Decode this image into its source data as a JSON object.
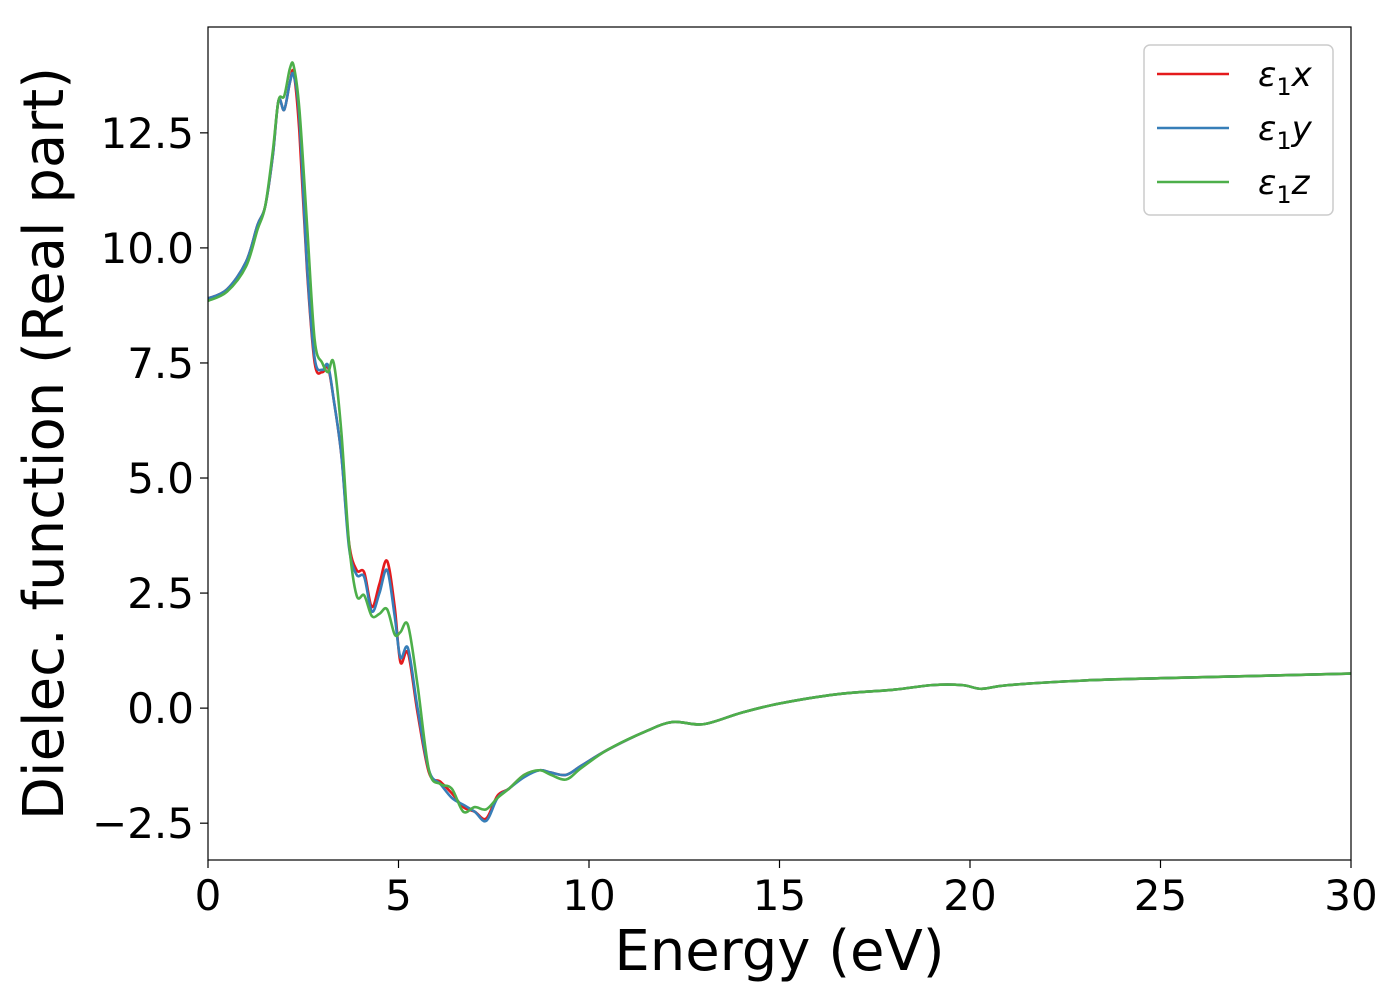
{
  "chart_data": {
    "type": "line",
    "xlabel": "Energy (eV)",
    "ylabel": "Dielec. function (Real part)",
    "xlim": [
      0,
      30
    ],
    "ylim": [
      -3.3,
      14.8
    ],
    "xticks": [
      0,
      5,
      10,
      15,
      20,
      25,
      30
    ],
    "xtick_labels": [
      "0",
      "5",
      "10",
      "15",
      "20",
      "25",
      "30"
    ],
    "yticks": [
      -2.5,
      0.0,
      2.5,
      5.0,
      7.5,
      10.0,
      12.5
    ],
    "ytick_labels": [
      "−2.5",
      "0.0",
      "2.5",
      "5.0",
      "7.5",
      "10.0",
      "12.5"
    ],
    "grid": false,
    "legend_position": "top-right",
    "series": [
      {
        "name": "ε1x",
        "legend_base": "ε",
        "legend_sub": "1",
        "legend_var": "x",
        "color": "#e41a1c",
        "x": [
          0,
          0.5,
          1.0,
          1.3,
          1.5,
          1.7,
          1.85,
          2.0,
          2.15,
          2.25,
          2.4,
          2.6,
          2.8,
          3.0,
          3.15,
          3.3,
          3.5,
          3.7,
          3.9,
          4.1,
          4.3,
          4.5,
          4.7,
          4.9,
          5.05,
          5.25,
          5.5,
          5.8,
          6.1,
          6.4,
          6.7,
          7.0,
          7.3,
          7.6,
          7.9,
          8.3,
          8.7,
          9.0,
          9.4,
          9.8,
          10.5,
          11.5,
          12.2,
          13.0,
          14.0,
          15.0,
          16.5,
          18.0,
          19.0,
          19.8,
          20.3,
          21.0,
          23.0,
          25.0,
          27.5,
          30.0
        ],
        "y": [
          8.9,
          9.1,
          9.7,
          10.5,
          10.9,
          12.0,
          13.2,
          13.0,
          13.6,
          13.8,
          12.5,
          9.5,
          7.5,
          7.3,
          7.4,
          6.7,
          5.5,
          3.6,
          3.0,
          2.95,
          2.2,
          2.7,
          3.2,
          2.2,
          1.0,
          1.2,
          -0.1,
          -1.4,
          -1.6,
          -1.85,
          -2.15,
          -2.25,
          -2.4,
          -1.9,
          -1.75,
          -1.45,
          -1.35,
          -1.4,
          -1.45,
          -1.25,
          -0.9,
          -0.5,
          -0.3,
          -0.35,
          -0.1,
          0.1,
          0.3,
          0.4,
          0.5,
          0.5,
          0.42,
          0.5,
          0.6,
          0.65,
          0.7,
          0.75
        ]
      },
      {
        "name": "ε1y",
        "legend_base": "ε",
        "legend_sub": "1",
        "legend_var": "y",
        "color": "#377eb8",
        "x": [
          0,
          0.5,
          1.0,
          1.3,
          1.5,
          1.7,
          1.85,
          2.0,
          2.15,
          2.25,
          2.4,
          2.6,
          2.8,
          3.0,
          3.15,
          3.3,
          3.5,
          3.7,
          3.9,
          4.1,
          4.3,
          4.5,
          4.7,
          4.9,
          5.05,
          5.25,
          5.5,
          5.8,
          6.1,
          6.4,
          6.7,
          7.0,
          7.3,
          7.6,
          7.9,
          8.3,
          8.7,
          9.0,
          9.4,
          9.8,
          10.5,
          11.5,
          12.2,
          13.0,
          14.0,
          15.0,
          16.5,
          18.0,
          19.0,
          19.8,
          20.3,
          21.0,
          23.0,
          25.0,
          27.5,
          30.0
        ],
        "y": [
          8.9,
          9.1,
          9.7,
          10.5,
          10.9,
          12.0,
          13.2,
          13.0,
          13.6,
          13.75,
          12.8,
          9.6,
          7.6,
          7.35,
          7.45,
          6.7,
          5.5,
          3.5,
          2.9,
          2.85,
          2.1,
          2.5,
          3.0,
          2.0,
          1.1,
          1.3,
          0.0,
          -1.35,
          -1.65,
          -1.95,
          -2.1,
          -2.25,
          -2.45,
          -1.95,
          -1.75,
          -1.5,
          -1.35,
          -1.4,
          -1.45,
          -1.25,
          -0.9,
          -0.5,
          -0.3,
          -0.35,
          -0.1,
          0.1,
          0.3,
          0.4,
          0.5,
          0.5,
          0.42,
          0.5,
          0.6,
          0.65,
          0.7,
          0.75
        ]
      },
      {
        "name": "ε1z",
        "legend_base": "ε",
        "legend_sub": "1",
        "legend_var": "z",
        "color": "#4daf4a",
        "x": [
          0,
          0.5,
          1.0,
          1.3,
          1.5,
          1.7,
          1.85,
          2.0,
          2.15,
          2.25,
          2.4,
          2.6,
          2.8,
          3.0,
          3.15,
          3.3,
          3.5,
          3.7,
          3.9,
          4.1,
          4.3,
          4.5,
          4.7,
          4.9,
          5.05,
          5.25,
          5.5,
          5.8,
          6.1,
          6.4,
          6.7,
          7.0,
          7.3,
          7.6,
          7.9,
          8.3,
          8.7,
          9.0,
          9.4,
          9.8,
          10.5,
          11.5,
          12.2,
          13.0,
          14.0,
          15.0,
          16.5,
          18.0,
          19.0,
          19.8,
          20.3,
          21.0,
          23.0,
          25.0,
          27.5,
          30.0
        ],
        "y": [
          8.85,
          9.05,
          9.6,
          10.4,
          10.9,
          12.1,
          13.2,
          13.3,
          13.9,
          13.95,
          13.0,
          10.5,
          8.0,
          7.5,
          7.3,
          7.5,
          6.0,
          3.6,
          2.45,
          2.45,
          2.0,
          2.05,
          2.15,
          1.6,
          1.65,
          1.8,
          0.5,
          -1.35,
          -1.65,
          -1.75,
          -2.25,
          -2.15,
          -2.2,
          -1.95,
          -1.75,
          -1.45,
          -1.35,
          -1.45,
          -1.55,
          -1.3,
          -0.9,
          -0.5,
          -0.3,
          -0.35,
          -0.1,
          0.1,
          0.3,
          0.4,
          0.5,
          0.5,
          0.42,
          0.5,
          0.6,
          0.65,
          0.7,
          0.75
        ]
      }
    ]
  }
}
